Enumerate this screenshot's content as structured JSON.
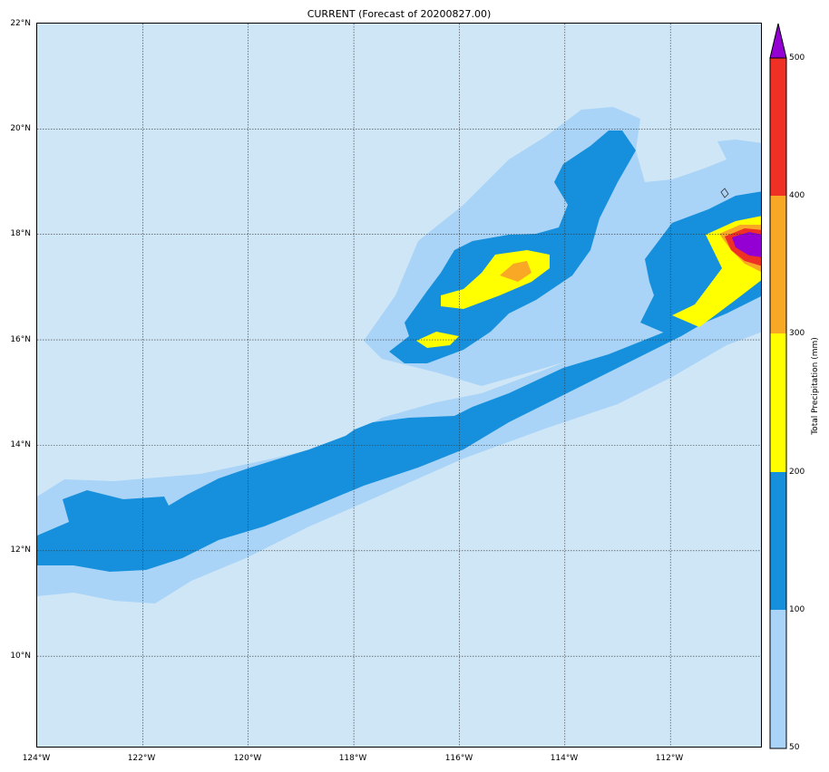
{
  "title": "CURRENT (Forecast of 20200827.00)",
  "lat_labels": [
    "22°N",
    "20°N",
    "18°N",
    "16°N",
    "14°N",
    "12°N",
    "10°N"
  ],
  "lon_labels": [
    "124°W",
    "122°W",
    "120°W",
    "118°W",
    "116°W",
    "114°W",
    "112°W"
  ],
  "colorbar": {
    "title": "Total Precipitation (mm)",
    "ticks": [
      "500",
      "400",
      "300",
      "200",
      "100",
      "50"
    ],
    "levels": [
      {
        "from": 50,
        "to": 100,
        "color": "#a9d4f7"
      },
      {
        "from": 100,
        "to": 200,
        "color": "#1690dc"
      },
      {
        "from": 200,
        "to": 300,
        "color": "#ffff00"
      },
      {
        "from": 300,
        "to": 400,
        "color": "#f9a825"
      },
      {
        "from": 400,
        "to": 500,
        "color": "#ee3124"
      },
      {
        "from": 500,
        "to": "max",
        "color": "#9400d3"
      }
    ],
    "background_color": "#cfe6f6"
  },
  "extent": {
    "lon_min": -124,
    "lon_max": -110.25,
    "lat_min": 8.25,
    "lat_max": 22
  }
}
